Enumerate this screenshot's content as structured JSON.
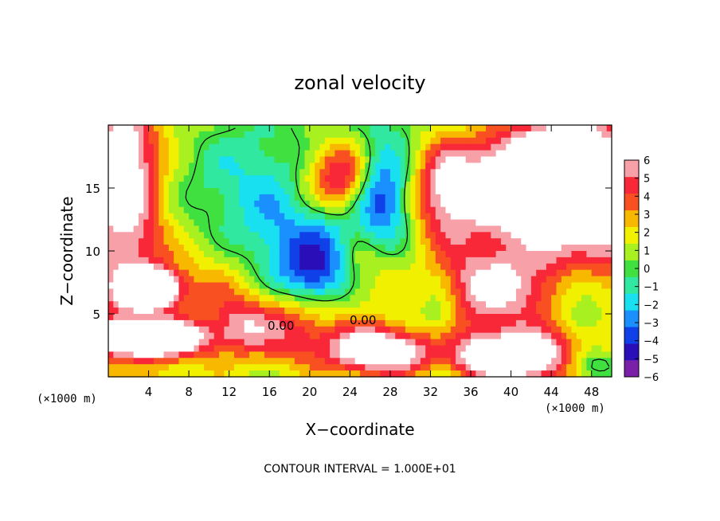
{
  "chart_data": {
    "type": "heatmap",
    "title": "zonal velocity",
    "xlabel": "X−coordinate",
    "ylabel": "Z−coordinate",
    "x_units": "(×1000 m)",
    "y_units": "(×1000 m)",
    "footer": "CONTOUR INTERVAL = 1.000E+01",
    "xlim": [
      0,
      50
    ],
    "ylim": [
      0,
      20
    ],
    "x_ticks": [
      4,
      8,
      12,
      16,
      20,
      24,
      28,
      32,
      36,
      40,
      44,
      48
    ],
    "y_ticks": [
      5,
      10,
      15
    ],
    "colorbar": {
      "range": [
        -6,
        6
      ],
      "ticks": [
        6,
        5,
        4,
        3,
        2,
        1,
        0,
        -1,
        -2,
        -3,
        -4,
        -5,
        -6
      ],
      "tick_labels": [
        "6",
        "5",
        "4",
        "3",
        "2",
        "1",
        "0",
        "−1",
        "−2",
        "−3",
        "−4",
        "−5",
        "−6"
      ],
      "colors": [
        "#7a1fa8",
        "#2a0fb8",
        "#1040e8",
        "#1a90ff",
        "#18e0f0",
        "#30e8a0",
        "#40e040",
        "#a8f020",
        "#f0f000",
        "#f8b800",
        "#f85020",
        "#f82838",
        "#f8a0a8"
      ]
    },
    "contour_labels": [
      "0.00",
      "0.00"
    ],
    "features": [
      {
        "x": 23,
        "y": 15.5,
        "value": 7,
        "sx": 2.5,
        "sy": 2.2
      },
      {
        "x": 24,
        "y": 10,
        "value": 8,
        "sx": 2.8,
        "sy": 3.2
      },
      {
        "x": 23,
        "y": 11.5,
        "value": -8,
        "sx": 2.5,
        "sy": 3
      },
      {
        "x": 27,
        "y": 14,
        "value": -6,
        "sx": 2,
        "sy": 3
      },
      {
        "x": 21,
        "y": 8,
        "value": -5,
        "sx": 3,
        "sy": 2
      },
      {
        "x": 40,
        "y": 15,
        "value": 8,
        "sx": 6,
        "sy": 3
      },
      {
        "x": 46,
        "y": 17,
        "value": 6,
        "sx": 4,
        "sy": 3
      },
      {
        "x": 48,
        "y": 11,
        "value": 4,
        "sx": 3,
        "sy": 3
      },
      {
        "x": 38,
        "y": 7,
        "value": 6,
        "sx": 5,
        "sy": 2.5
      },
      {
        "x": 33,
        "y": 5,
        "value": -2,
        "sx": 1.5,
        "sy": 4
      },
      {
        "x": 33,
        "y": 14,
        "value": 3,
        "sx": 2,
        "sy": 4
      },
      {
        "x": 2,
        "y": 13,
        "value": 4,
        "sx": 2.5,
        "sy": 5
      },
      {
        "x": 1.5,
        "y": 18,
        "value": 3,
        "sx": 2,
        "sy": 3
      },
      {
        "x": 4,
        "y": 7,
        "value": 9,
        "sx": 2,
        "sy": 1
      },
      {
        "x": 4,
        "y": 3,
        "value": 9,
        "sx": 4,
        "sy": 1
      },
      {
        "x": 27,
        "y": 2,
        "value": 8,
        "sx": 4,
        "sy": 1.5
      },
      {
        "x": 18,
        "y": 4,
        "value": 4,
        "sx": 3,
        "sy": 2
      },
      {
        "x": 13,
        "y": 4,
        "value": 3,
        "sx": 2,
        "sy": 1.5
      },
      {
        "x": 40,
        "y": 1.5,
        "value": 8,
        "sx": 5,
        "sy": 1.5
      },
      {
        "x": 47,
        "y": 7,
        "value": -3,
        "sx": 2,
        "sy": 2
      },
      {
        "x": 48,
        "y": 1,
        "value": -4,
        "sx": 2,
        "sy": 1
      },
      {
        "x": 8,
        "y": 15,
        "value": -1,
        "sx": 5,
        "sy": 4
      },
      {
        "x": 14,
        "y": 16,
        "value": -2,
        "sx": 5,
        "sy": 4
      },
      {
        "x": 17,
        "y": 11,
        "value": -2,
        "sx": 3,
        "sy": 3
      },
      {
        "x": 10,
        "y": 7,
        "value": 1.5,
        "sx": 4,
        "sy": 2
      },
      {
        "x": 1,
        "y": 1,
        "value": -1,
        "sx": 2,
        "sy": 1
      }
    ]
  }
}
